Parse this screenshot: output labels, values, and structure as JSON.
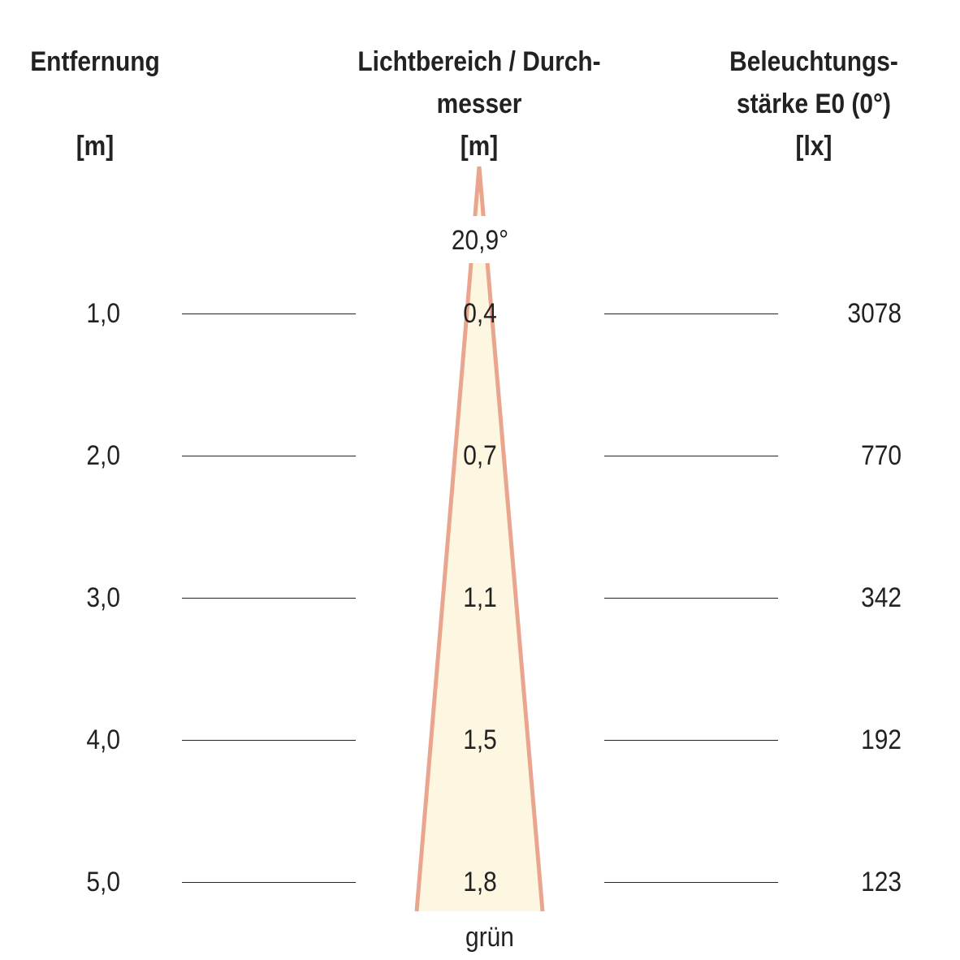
{
  "headers": {
    "distance": [
      "Entfernung",
      "",
      "[m]"
    ],
    "beam": [
      "Lichtbereich / Durch-",
      "messer",
      "[m]"
    ],
    "illuminance": [
      "Beleuchtungs-",
      "stärke E0 (0°)",
      "[lx]"
    ]
  },
  "beam_angle": "20,9°",
  "colour_label": "grün",
  "colors": {
    "beam_fill": "#fdf7e1",
    "beam_edge": "#eaa58f",
    "text": "#222222",
    "rule": "#222222"
  },
  "rows": [
    {
      "distance": "1,0",
      "diameter": "0,4",
      "lux": "3078"
    },
    {
      "distance": "2,0",
      "diameter": "0,7",
      "lux": "770"
    },
    {
      "distance": "3,0",
      "diameter": "1,1",
      "lux": "342"
    },
    {
      "distance": "4,0",
      "diameter": "1,5",
      "lux": "192"
    },
    {
      "distance": "5,0",
      "diameter": "1,8",
      "lux": "123"
    }
  ]
}
